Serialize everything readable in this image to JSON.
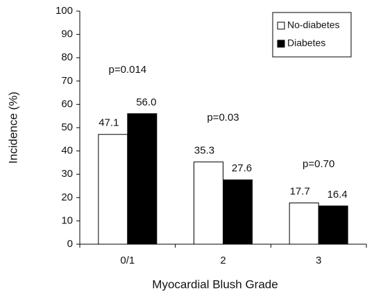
{
  "chart_data": {
    "type": "bar",
    "categories": [
      "0/1",
      "2",
      "3"
    ],
    "series": [
      {
        "name": "No-diabetes",
        "color": "#ffffff",
        "values": [
          47.1,
          35.3,
          17.7
        ]
      },
      {
        "name": "Diabetes",
        "color": "#000000",
        "values": [
          56,
          27.6,
          16.4
        ],
        "value_labels": [
          "56.0",
          "27.6",
          "16.4"
        ]
      }
    ],
    "annotations": [
      "p=0.014",
      "p=0.03",
      "p=0.70"
    ],
    "x_label": "Myocardial Blush Grade",
    "y_label": "Incidence (%)",
    "ylim": [
      0,
      100
    ],
    "yticks": [
      0,
      10,
      20,
      30,
      40,
      50,
      60,
      70,
      80,
      90,
      100
    ],
    "legend": "upper-right"
  }
}
